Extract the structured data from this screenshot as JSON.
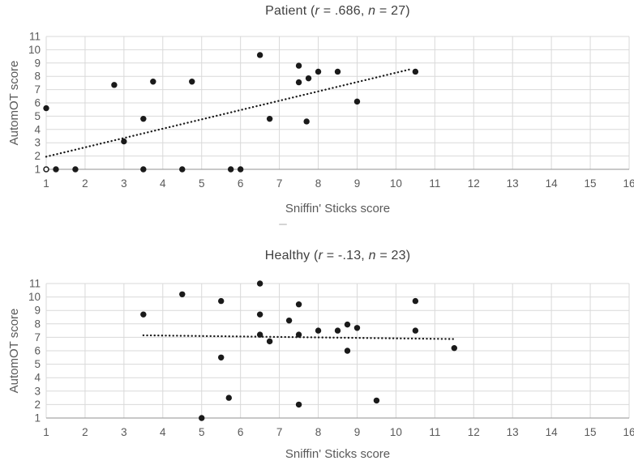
{
  "figure": {
    "background": "#ffffff",
    "marker_color": "#1a1a1a",
    "grid_color": "#d9d9d9",
    "axis_color": "#a6a6a6",
    "tick_color": "#595959",
    "title_color": "#404040"
  },
  "chart_data": [
    {
      "type": "scatter",
      "group": "Patient",
      "title": "Patient (r = .686, n = 27)",
      "title_parts": [
        "Patient (",
        "r",
        " = .686, ",
        "n",
        " = 27)"
      ],
      "r": ".686",
      "n": 27,
      "xlabel": "Sniffin' Sticks score",
      "ylabel": "AutomOT score",
      "xlim": [
        1,
        16
      ],
      "ylim": [
        1,
        11
      ],
      "x_ticks": [
        1,
        2,
        3,
        4,
        5,
        6,
        7,
        8,
        9,
        10,
        11,
        12,
        13,
        14,
        15,
        16
      ],
      "y_ticks": [
        1,
        2,
        3,
        4,
        5,
        6,
        7,
        8,
        9,
        10,
        11
      ],
      "grid": true,
      "legend": false,
      "points": [
        [
          1,
          5.6
        ],
        [
          1.25,
          1
        ],
        [
          1.75,
          1
        ],
        [
          2.75,
          7.35
        ],
        [
          3,
          3.1
        ],
        [
          3.5,
          4.8
        ],
        [
          3.5,
          1
        ],
        [
          3.75,
          7.6
        ],
        [
          4.5,
          1
        ],
        [
          4.75,
          7.6
        ],
        [
          5.75,
          1
        ],
        [
          6,
          1
        ],
        [
          6.5,
          9.6
        ],
        [
          6.75,
          4.8
        ],
        [
          7.5,
          8.8
        ],
        [
          7.5,
          7.55
        ],
        [
          7.7,
          4.6
        ],
        [
          7.75,
          7.85
        ],
        [
          8,
          8.35
        ],
        [
          8.5,
          8.35
        ],
        [
          9,
          6.1
        ],
        [
          10.5,
          8.35
        ]
      ],
      "open_points": [
        [
          1,
          1
        ]
      ],
      "trendline": {
        "style": "dotted",
        "x1": 1,
        "y1": 1.95,
        "x2": 10.4,
        "y2": 8.55
      }
    },
    {
      "type": "scatter",
      "group": "Healthy",
      "title": "Healthy (r = -.13, n = 23)",
      "title_parts": [
        "Healthy (",
        "r",
        " = -.13, ",
        "n",
        " = 23)"
      ],
      "r": "-.13",
      "n": 23,
      "xlabel": "Sniffin' Sticks score",
      "ylabel": "AutomOT score",
      "xlim": [
        1,
        16
      ],
      "ylim": [
        1,
        11
      ],
      "x_ticks": [
        1,
        2,
        3,
        4,
        5,
        6,
        7,
        8,
        9,
        10,
        11,
        12,
        13,
        14,
        15,
        16
      ],
      "y_ticks": [
        1,
        2,
        3,
        4,
        5,
        6,
        7,
        8,
        9,
        10,
        11
      ],
      "grid": true,
      "legend": false,
      "points": [
        [
          3.5,
          8.7
        ],
        [
          4.5,
          10.2
        ],
        [
          5,
          1
        ],
        [
          5.5,
          9.7
        ],
        [
          5.5,
          5.5
        ],
        [
          5.7,
          2.5
        ],
        [
          6.5,
          11
        ],
        [
          6.5,
          8.7
        ],
        [
          6.5,
          7.2
        ],
        [
          6.75,
          6.7
        ],
        [
          7.25,
          8.25
        ],
        [
          7.5,
          9.45
        ],
        [
          7.5,
          7.2
        ],
        [
          7.5,
          2
        ],
        [
          8,
          7.5
        ],
        [
          8.5,
          7.5
        ],
        [
          8.75,
          7.95
        ],
        [
          8.75,
          6
        ],
        [
          9,
          7.7
        ],
        [
          9.5,
          2.3
        ],
        [
          10.5,
          9.7
        ],
        [
          10.5,
          7.5
        ],
        [
          11.5,
          6.2
        ]
      ],
      "open_points": [],
      "trendline": {
        "style": "dotted",
        "x1": 3.5,
        "y1": 7.15,
        "x2": 11.55,
        "y2": 6.87
      }
    }
  ]
}
